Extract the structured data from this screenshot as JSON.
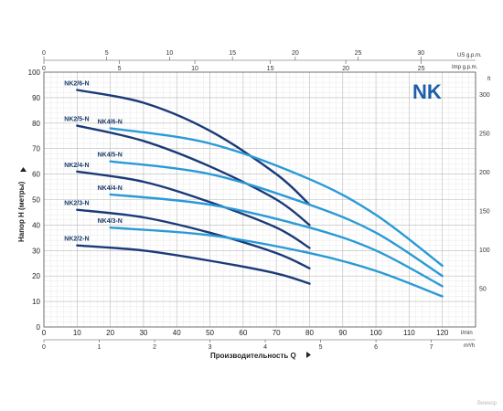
{
  "chart_data": {
    "type": "line",
    "brand": "NK",
    "xlabel": "Производительность Q",
    "ylabel": "Напор H (метры)",
    "x_unit_bottom": "l/min",
    "x_unit_m3h": "m³/h",
    "x_unit_usgpm": "US g.p.m.",
    "x_unit_impgpm": "Imp g.p.m.",
    "y_unit_right": "ft",
    "xlim": [
      0,
      130
    ],
    "ylim": [
      0,
      100
    ],
    "x_ticks_lmin": [
      "0",
      "10",
      "20",
      "30",
      "40",
      "50",
      "60",
      "70",
      "80",
      "90",
      "100",
      "110",
      "120"
    ],
    "x_ticks_m3h": [
      "0",
      "1",
      "2",
      "3",
      "4",
      "5",
      "6",
      "7"
    ],
    "x_ticks_usgpm": [
      "0",
      "5",
      "10",
      "15",
      "20",
      "25",
      "30"
    ],
    "x_ticks_impgpm": [
      "0",
      "5",
      "10",
      "15",
      "20",
      "25"
    ],
    "y_ticks": [
      "0",
      "10",
      "20",
      "30",
      "40",
      "50",
      "60",
      "70",
      "80",
      "90",
      "100"
    ],
    "y_ticks_ft": [
      "50",
      "100",
      "150",
      "200",
      "250",
      "300"
    ],
    "watermark": "Вимхор",
    "series": [
      {
        "name": "NK2/6-N",
        "color": "#1a3a78",
        "x": [
          10,
          30,
          50,
          70,
          80
        ],
        "y": [
          93,
          88,
          77,
          60,
          48
        ]
      },
      {
        "name": "NK2/5-N",
        "color": "#1a3a78",
        "x": [
          10,
          30,
          50,
          70,
          80
        ],
        "y": [
          79,
          73,
          63,
          50,
          40
        ]
      },
      {
        "name": "NK2/4-N",
        "color": "#1a3a78",
        "x": [
          10,
          30,
          50,
          70,
          80
        ],
        "y": [
          61,
          57,
          49,
          39,
          31
        ]
      },
      {
        "name": "NK2/3-N",
        "color": "#1a3a78",
        "x": [
          10,
          30,
          50,
          70,
          80
        ],
        "y": [
          46,
          43,
          37,
          29,
          23
        ]
      },
      {
        "name": "NK2/2-N",
        "color": "#1a3a78",
        "x": [
          10,
          30,
          50,
          70,
          80
        ],
        "y": [
          32,
          30,
          26,
          21,
          17
        ]
      },
      {
        "name": "NK4/6-N",
        "color": "#2a9ad6",
        "x": [
          20,
          50,
          80,
          100,
          120
        ],
        "y": [
          78,
          72,
          58,
          44,
          24
        ]
      },
      {
        "name": "NK4/5-N",
        "color": "#2a9ad6",
        "x": [
          20,
          50,
          80,
          100,
          120
        ],
        "y": [
          65,
          60,
          48,
          37,
          20
        ]
      },
      {
        "name": "NK4/4-N",
        "color": "#2a9ad6",
        "x": [
          20,
          50,
          80,
          100,
          120
        ],
        "y": [
          52,
          48,
          39,
          30,
          16
        ]
      },
      {
        "name": "NK4/3-N",
        "color": "#2a9ad6",
        "x": [
          20,
          50,
          80,
          100,
          120
        ],
        "y": [
          39,
          36,
          29,
          22,
          12
        ]
      }
    ]
  }
}
